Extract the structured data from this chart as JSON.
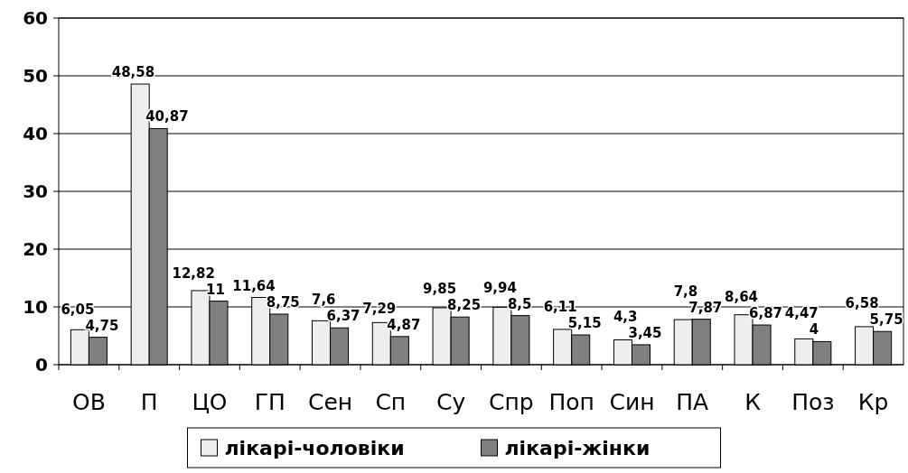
{
  "chart_data": {
    "type": "bar",
    "categories": [
      "ОВ",
      "П",
      "ЦО",
      "ГП",
      "Сен",
      "Сп",
      "Су",
      "Спр",
      "Поп",
      "Син",
      "ПА",
      "К",
      "Поз",
      "Кр"
    ],
    "series": [
      {
        "name": "лікарі-чоловіки",
        "color": "#eeeeee",
        "values": [
          6.05,
          48.58,
          12.82,
          11.64,
          7.6,
          7.29,
          9.85,
          9.94,
          6.11,
          4.3,
          7.8,
          8.64,
          4.47,
          6.58
        ],
        "value_labels": [
          "6,05",
          "48,58",
          "12,82",
          "11,64",
          "7,6",
          "7,29",
          "9,85",
          "9,94",
          "6,11",
          "4,3",
          "7,8",
          "8,64",
          "4,47",
          "6,58"
        ]
      },
      {
        "name": "лікарі-жінки",
        "color": "#808080",
        "values": [
          4.75,
          40.87,
          11,
          8.75,
          6.37,
          4.87,
          8.25,
          8.5,
          5.15,
          3.45,
          7.87,
          6.87,
          4,
          5.75
        ],
        "value_labels": [
          "4,75",
          "40,87",
          "11",
          "8,75",
          "6,37",
          "4,87",
          "8,25",
          "8,5",
          "5,15",
          "3,45",
          "7,87",
          "6,87",
          "4",
          "5,75"
        ]
      }
    ],
    "ylim": [
      0,
      60
    ],
    "yticks": [
      0,
      10,
      20,
      30,
      40,
      50,
      60
    ],
    "grid": "y",
    "legend": "bottom"
  }
}
